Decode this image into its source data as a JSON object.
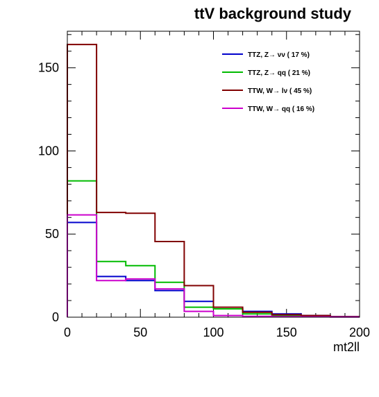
{
  "chart_data": {
    "type": "line",
    "title": "ttV background study",
    "xlabel": "mt2ll",
    "ylabel": "",
    "xlim": [
      0,
      200
    ],
    "ylim": [
      0,
      172
    ],
    "xticks": [
      0,
      50,
      100,
      150,
      200
    ],
    "yticks": [
      0,
      50,
      100,
      150
    ],
    "bin_edges": [
      0,
      20,
      40,
      60,
      80,
      100,
      120,
      140,
      160,
      180,
      200
    ],
    "grid": false,
    "legend_position": "top-right",
    "series": [
      {
        "name": "TTZ, Z→ νν (   17 %)",
        "color": "#0000cc",
        "values": [
          57,
          24.5,
          22,
          16,
          9.5,
          5,
          3.5,
          2,
          1,
          0.3
        ]
      },
      {
        "name": "TTZ, Z→ qq (   21 %)",
        "color": "#00bb00",
        "values": [
          82,
          33.5,
          31,
          21,
          6,
          5,
          2,
          1,
          0.5,
          0.2
        ]
      },
      {
        "name": "TTW, W→ lν (   45 %)",
        "color": "#800000",
        "values": [
          164,
          63,
          62.5,
          45.5,
          19,
          6,
          3,
          1.5,
          1,
          0.3
        ]
      },
      {
        "name": "TTW, W→ qq (   16 %)",
        "color": "#cc00cc",
        "values": [
          61.5,
          22,
          23,
          17,
          3.5,
          1,
          0.5,
          0.3,
          0.2,
          0.1
        ]
      }
    ]
  }
}
